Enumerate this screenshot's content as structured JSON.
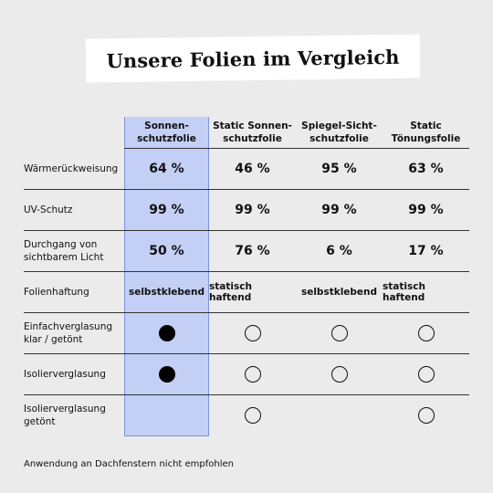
{
  "title": "Unsere Folien im Vergleich",
  "columns": [
    "Sonnen-\nschutzfolie",
    "Static Sonnen-\nschutzfolie",
    "Spiegel-Sicht-\nschutzfolie",
    "Static\nTönungsfolie"
  ],
  "rows": [
    {
      "label": "Wärmerückweisung",
      "values": [
        "64 %",
        "46 %",
        "95 %",
        "63 %"
      ]
    },
    {
      "label": "UV-Schutz",
      "values": [
        "99 %",
        "99 %",
        "99 %",
        "99 %"
      ]
    },
    {
      "label": "Durchgang von\nsichtbarem Licht",
      "values": [
        "50 %",
        "76 %",
        "6 %",
        "17 %"
      ]
    },
    {
      "label": "Folienhaftung",
      "values": [
        "selbstklebend",
        "statisch haftend",
        "selbstklebend",
        "statisch haftend"
      ]
    },
    {
      "label": "Einfachverglasung\nklar / getönt",
      "marks": [
        "filled",
        "empty",
        "empty",
        "empty"
      ]
    },
    {
      "label": "Isolierverglasung",
      "marks": [
        "filled",
        "empty",
        "empty",
        "empty"
      ]
    },
    {
      "label": "Isolierverglasung\ngetönt",
      "marks": [
        "none",
        "empty",
        "none",
        "empty"
      ]
    }
  ],
  "footnote": "Anwendung an Dachfenstern nicht empfohlen",
  "colors": {
    "highlight": "#c3cff5",
    "background": "#ebebeb"
  }
}
